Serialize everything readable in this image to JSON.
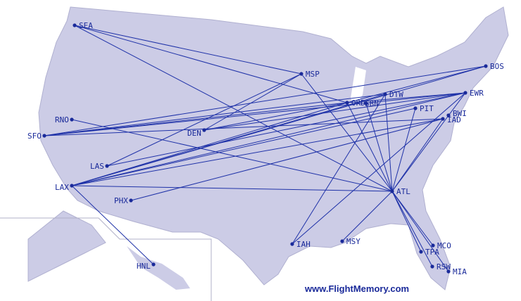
{
  "credit": "www.FlightMemory.com",
  "colors": {
    "land": "#ccccE6",
    "route": "#1f32a8",
    "label": "#1a2a9a",
    "border": "#a9a9c8"
  },
  "airports": [
    {
      "code": "SEA"
    },
    {
      "code": "MSP"
    },
    {
      "code": "BOS"
    },
    {
      "code": "EWR"
    },
    {
      "code": "DTW"
    },
    {
      "code": "ORD"
    },
    {
      "code": "SBN"
    },
    {
      "code": "PIT"
    },
    {
      "code": "BWI"
    },
    {
      "code": "IAD"
    },
    {
      "code": "RNO"
    },
    {
      "code": "SFO"
    },
    {
      "code": "DEN"
    },
    {
      "code": "LAS"
    },
    {
      "code": "LAX"
    },
    {
      "code": "PHX"
    },
    {
      "code": "ATL"
    },
    {
      "code": "IAH"
    },
    {
      "code": "MSY"
    },
    {
      "code": "MCO"
    },
    {
      "code": "TPA"
    },
    {
      "code": "RSW"
    },
    {
      "code": "MIA"
    },
    {
      "code": "HNL"
    }
  ],
  "routes": [
    [
      "SEA",
      "ORD"
    ],
    [
      "SEA",
      "ATL"
    ],
    [
      "SEA",
      "MSP"
    ],
    [
      "MSP",
      "DEN"
    ],
    [
      "MSP",
      "LAS"
    ],
    [
      "MSP",
      "ATL"
    ],
    [
      "BOS",
      "SFO"
    ],
    [
      "BOS",
      "ORD"
    ],
    [
      "BOS",
      "LAX"
    ],
    [
      "EWR",
      "SFO"
    ],
    [
      "EWR",
      "LAX"
    ],
    [
      "EWR",
      "ATL"
    ],
    [
      "EWR",
      "DEN"
    ],
    [
      "EWR",
      "ORD"
    ],
    [
      "EWR",
      "LAS"
    ],
    [
      "EWR",
      "IAH"
    ],
    [
      "LAX",
      "ATL"
    ],
    [
      "LAX",
      "ORD"
    ],
    [
      "LAX",
      "DTW"
    ],
    [
      "LAX",
      "IAD"
    ],
    [
      "LAX",
      "HNL"
    ],
    [
      "LAX",
      "PIT"
    ],
    [
      "PHX",
      "IAD"
    ],
    [
      "RNO",
      "ATL"
    ],
    [
      "SFO",
      "ORD"
    ],
    [
      "SFO",
      "IAD"
    ],
    [
      "SFO",
      "DTW"
    ],
    [
      "DEN",
      "ORD"
    ],
    [
      "ATL",
      "MCO"
    ],
    [
      "ATL",
      "TPA"
    ],
    [
      "ATL",
      "RSW"
    ],
    [
      "ATL",
      "MIA"
    ],
    [
      "ATL",
      "MSY"
    ],
    [
      "ATL",
      "ORD"
    ],
    [
      "ATL",
      "DTW"
    ],
    [
      "ATL",
      "SBN"
    ],
    [
      "ATL",
      "PIT"
    ],
    [
      "ATL",
      "IAD"
    ],
    [
      "IAH",
      "DTW"
    ]
  ]
}
